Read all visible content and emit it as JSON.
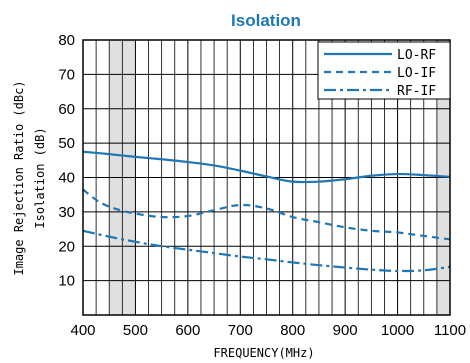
{
  "chart_data": {
    "type": "line",
    "title": "Isolation",
    "xlabel": "FREQUENCY(MHz)",
    "ylabel_lines": [
      "Image Rejection Ratio (dBc)",
      "Isolation (dB)"
    ],
    "xlim": [
      400,
      1100
    ],
    "ylim": [
      0,
      80
    ],
    "xticks": [
      400,
      500,
      600,
      700,
      800,
      900,
      1000,
      1100
    ],
    "yticks": [
      10,
      20,
      30,
      40,
      50,
      60,
      70,
      80
    ],
    "grid": true,
    "legend_position": "top-right",
    "shaded_x_ranges": [
      [
        450,
        500
      ],
      [
        1075,
        1100
      ]
    ],
    "colors": {
      "series": "#1f78b4",
      "title": "#1f78b4",
      "shade": "#e0e0e0",
      "grid": "#000000"
    },
    "series": [
      {
        "name": "LO-RF",
        "style": "solid",
        "x": [
          400,
          450,
          500,
          550,
          600,
          650,
          700,
          750,
          800,
          850,
          900,
          950,
          1000,
          1050,
          1100
        ],
        "y": [
          47.5,
          46.8,
          46,
          45.3,
          44.5,
          43.5,
          42,
          40.3,
          38.8,
          38.8,
          39.5,
          40.5,
          41,
          40.7,
          40.2
        ]
      },
      {
        "name": "LO-IF",
        "style": "dashed",
        "x": [
          400,
          430,
          460,
          500,
          550,
          600,
          650,
          700,
          750,
          800,
          850,
          900,
          950,
          1000,
          1050,
          1100
        ],
        "y": [
          36.5,
          33,
          31,
          29.5,
          28.5,
          28.8,
          30.5,
          32,
          31,
          28.5,
          27,
          25.5,
          24.5,
          24,
          23,
          22
        ]
      },
      {
        "name": "RF-IF",
        "style": "dashdot",
        "x": [
          400,
          450,
          500,
          550,
          600,
          650,
          700,
          750,
          800,
          850,
          900,
          950,
          1000,
          1050,
          1100
        ],
        "y": [
          24.5,
          22.8,
          21.3,
          20,
          19,
          18,
          17,
          16.2,
          15.3,
          14.5,
          13.8,
          13.2,
          12.8,
          13,
          14
        ]
      }
    ]
  }
}
